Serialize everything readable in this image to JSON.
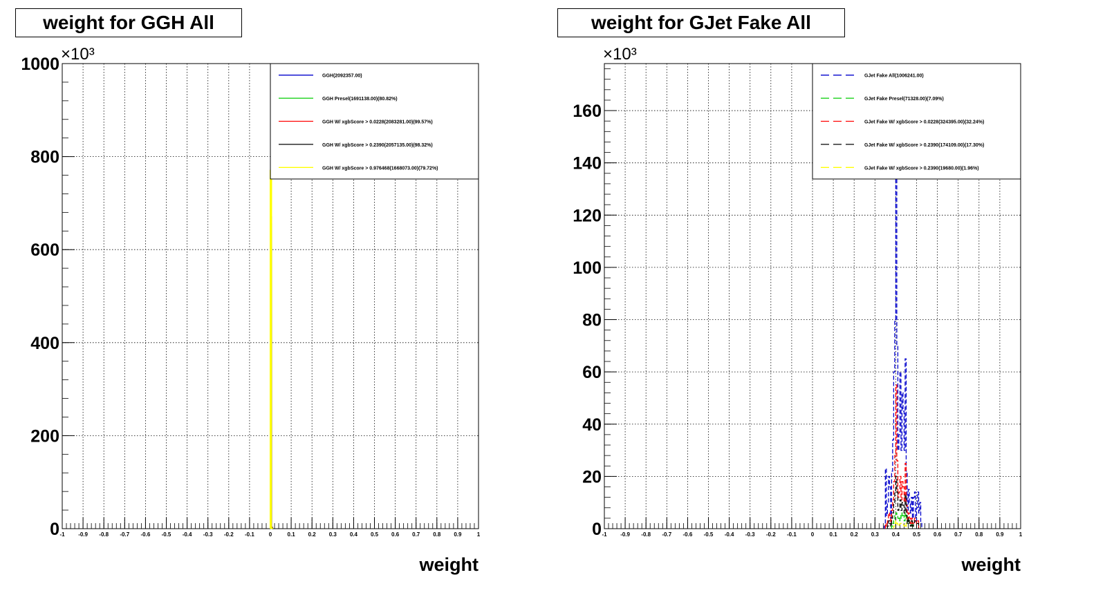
{
  "chart_data": [
    {
      "type": "histogram",
      "title": "weight for GGH All",
      "xlabel": "weight",
      "ylabel": "",
      "y_multiplier": "×10³",
      "xlim": [
        -1,
        1
      ],
      "ylim": [
        0,
        1000
      ],
      "x_ticks": [
        "-1",
        "-0.9",
        "-0.8",
        "-0.7",
        "-0.6",
        "-0.5",
        "-0.4",
        "-0.3",
        "-0.2",
        "-0.1",
        "0",
        "0.1",
        "0.2",
        "0.3",
        "0.4",
        "0.5",
        "0.6",
        "0.7",
        "0.8",
        "0.9",
        "1"
      ],
      "y_ticks": [
        "0",
        "200",
        "400",
        "600",
        "800",
        "1000"
      ],
      "grid": true,
      "legend_position": "top-right",
      "series": [
        {
          "name": "GGH(2092357.00)",
          "color": "#0000cc",
          "dash": "solid",
          "bins": [
            [
              0.0,
              670
            ],
            [
              0.004,
              2
            ]
          ]
        },
        {
          "name": "GGH Presel(1691138.00)(80.82%)",
          "color": "#00cc00",
          "dash": "solid",
          "bins": [
            [
              0.0,
              540
            ],
            [
              0.004,
              1
            ]
          ]
        },
        {
          "name": "GGH W/ xgbScore > 0.0228(2083281.00)(99.57%)",
          "color": "#ff0000",
          "dash": "solid",
          "bins": [
            [
              0.0,
              665
            ],
            [
              0.004,
              2
            ]
          ]
        },
        {
          "name": "GGH W/ xgbScore > 0.2390(2057135.00)(98.32%)",
          "color": "#000000",
          "dash": "solid",
          "bins": [
            [
              0.0,
              655
            ],
            [
              0.004,
              2
            ]
          ]
        },
        {
          "name": "GGH W/ xgbScore > 0.976468(1668073.00)(79.72%)",
          "color": "#ffff00",
          "dash": "solid",
          "bins": [
            [
              0.0,
              770
            ],
            [
              0.004,
              1
            ]
          ]
        }
      ]
    },
    {
      "type": "histogram",
      "title": "weight for GJet Fake All",
      "xlabel": "weight",
      "ylabel": "",
      "y_multiplier": "×10³",
      "xlim": [
        -1,
        1
      ],
      "ylim": [
        0,
        178
      ],
      "x_ticks": [
        "-1",
        "-0.9",
        "-0.8",
        "-0.7",
        "-0.6",
        "-0.5",
        "-0.4",
        "-0.3",
        "-0.2",
        "-0.1",
        "0",
        "0.1",
        "0.2",
        "0.3",
        "0.4",
        "0.5",
        "0.6",
        "0.7",
        "0.8",
        "0.9",
        "1"
      ],
      "y_ticks": [
        "0",
        "20",
        "40",
        "60",
        "80",
        "100",
        "120",
        "140",
        "160"
      ],
      "grid": true,
      "legend_position": "top-right",
      "series": [
        {
          "name": "GJet Fake All(1006241.00)",
          "color": "#0000cc",
          "dash": "dashed",
          "bins": [
            [
              0.345,
              1
            ],
            [
              0.35,
              23
            ],
            [
              0.355,
              5
            ],
            [
              0.36,
              10
            ],
            [
              0.365,
              20
            ],
            [
              0.37,
              16
            ],
            [
              0.375,
              4
            ],
            [
              0.38,
              22
            ],
            [
              0.385,
              34
            ],
            [
              0.39,
              60
            ],
            [
              0.395,
              80
            ],
            [
              0.4,
              140
            ],
            [
              0.405,
              70
            ],
            [
              0.41,
              30
            ],
            [
              0.415,
              36
            ],
            [
              0.42,
              60
            ],
            [
              0.425,
              30
            ],
            [
              0.43,
              52
            ],
            [
              0.435,
              45
            ],
            [
              0.44,
              30
            ],
            [
              0.445,
              65
            ],
            [
              0.45,
              22
            ],
            [
              0.455,
              6
            ],
            [
              0.46,
              15
            ],
            [
              0.465,
              10
            ],
            [
              0.47,
              6
            ],
            [
              0.475,
              12
            ],
            [
              0.48,
              4
            ],
            [
              0.485,
              12
            ],
            [
              0.49,
              14
            ],
            [
              0.495,
              3
            ],
            [
              0.5,
              8
            ],
            [
              0.505,
              14
            ],
            [
              0.51,
              6
            ],
            [
              0.515,
              10
            ],
            [
              0.52,
              2
            ]
          ]
        },
        {
          "name": "GJet Fake Presel(71328.00)(7.09%)",
          "color": "#00cc00",
          "dash": "dashed",
          "bins": [
            [
              0.38,
              1
            ],
            [
              0.385,
              2
            ],
            [
              0.39,
              3
            ],
            [
              0.395,
              5
            ],
            [
              0.4,
              6
            ],
            [
              0.405,
              5
            ],
            [
              0.41,
              4
            ],
            [
              0.415,
              3
            ],
            [
              0.42,
              5
            ],
            [
              0.425,
              4
            ],
            [
              0.43,
              6
            ],
            [
              0.435,
              5
            ],
            [
              0.44,
              3
            ],
            [
              0.445,
              6
            ],
            [
              0.45,
              4
            ],
            [
              0.455,
              2
            ],
            [
              0.46,
              4
            ],
            [
              0.465,
              2
            ],
            [
              0.47,
              1
            ],
            [
              0.475,
              2
            ],
            [
              0.48,
              1
            ]
          ]
        },
        {
          "name": "GJet Fake W/ xgbScore > 0.0228(324395.00)(32.24%)",
          "color": "#ff0000",
          "dash": "dashed",
          "bins": [
            [
              0.35,
              2
            ],
            [
              0.355,
              1
            ],
            [
              0.36,
              3
            ],
            [
              0.365,
              6
            ],
            [
              0.37,
              5
            ],
            [
              0.375,
              2
            ],
            [
              0.38,
              7
            ],
            [
              0.385,
              11
            ],
            [
              0.39,
              18
            ],
            [
              0.395,
              28
            ],
            [
              0.4,
              55
            ],
            [
              0.405,
              26
            ],
            [
              0.41,
              12
            ],
            [
              0.415,
              14
            ],
            [
              0.42,
              20
            ],
            [
              0.425,
              11
            ],
            [
              0.43,
              18
            ],
            [
              0.435,
              16
            ],
            [
              0.44,
              10
            ],
            [
              0.445,
              25
            ],
            [
              0.45,
              9
            ],
            [
              0.455,
              3
            ],
            [
              0.46,
              6
            ],
            [
              0.465,
              4
            ],
            [
              0.47,
              2
            ],
            [
              0.475,
              4
            ],
            [
              0.48,
              2
            ],
            [
              0.485,
              3
            ],
            [
              0.49,
              4
            ],
            [
              0.5,
              2
            ],
            [
              0.505,
              3
            ]
          ]
        },
        {
          "name": "GJet Fake W/ xgbScore > 0.2390(174109.00)(17.30%)",
          "color": "#000000",
          "dash": "dashed",
          "bins": [
            [
              0.36,
              1
            ],
            [
              0.365,
              3
            ],
            [
              0.37,
              2
            ],
            [
              0.375,
              1
            ],
            [
              0.38,
              4
            ],
            [
              0.385,
              6
            ],
            [
              0.39,
              10
            ],
            [
              0.395,
              14
            ],
            [
              0.4,
              20
            ],
            [
              0.405,
              14
            ],
            [
              0.41,
              7
            ],
            [
              0.415,
              8
            ],
            [
              0.42,
              11
            ],
            [
              0.425,
              7
            ],
            [
              0.43,
              10
            ],
            [
              0.435,
              9
            ],
            [
              0.44,
              6
            ],
            [
              0.445,
              13
            ],
            [
              0.45,
              5
            ],
            [
              0.455,
              2
            ],
            [
              0.46,
              4
            ],
            [
              0.465,
              2
            ],
            [
              0.47,
              1
            ],
            [
              0.475,
              3
            ],
            [
              0.48,
              1
            ],
            [
              0.485,
              2
            ],
            [
              0.49,
              3
            ],
            [
              0.5,
              2
            ],
            [
              0.505,
              2
            ]
          ]
        },
        {
          "name": "GJet Fake W/ xgbScore > 0.2390(19680.00)(1.96%)",
          "color": "#ffff00",
          "dash": "dashed",
          "bins": [
            [
              0.39,
              1
            ],
            [
              0.395,
              2
            ],
            [
              0.4,
              3
            ],
            [
              0.405,
              2
            ],
            [
              0.41,
              1
            ],
            [
              0.42,
              2
            ],
            [
              0.43,
              2
            ],
            [
              0.44,
              1
            ],
            [
              0.445,
              2
            ],
            [
              0.45,
              1
            ]
          ]
        }
      ]
    }
  ]
}
